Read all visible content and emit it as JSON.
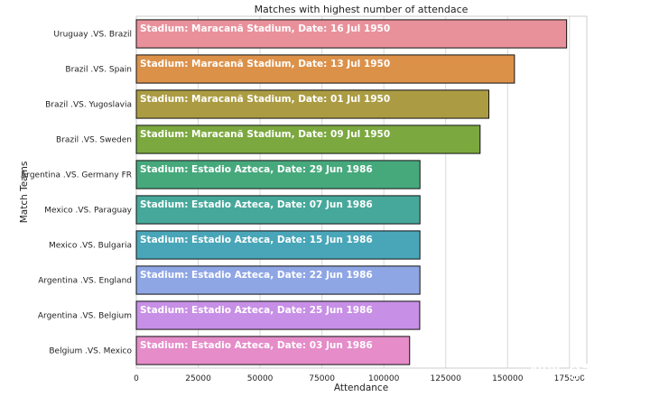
{
  "chart_data": {
    "type": "bar",
    "orientation": "horizontal",
    "title": "Matches with highest number of attendace",
    "xlabel": "Attendance",
    "ylabel": "Match Teams",
    "xlim": [
      0,
      182000
    ],
    "xticks": [
      0,
      25000,
      50000,
      75000,
      100000,
      125000,
      150000,
      175000
    ],
    "xtick_labels": [
      "0",
      "25000",
      "50000",
      "75000",
      "100000",
      "125000",
      "150000",
      "175000"
    ],
    "grid": true,
    "categories": [
      "Uruguay .VS. Brazil",
      "Brazil .VS. Spain",
      "Brazil .VS. Yugoslavia",
      "Brazil .VS. Sweden",
      "Argentina .VS. Germany FR",
      "Mexico .VS. Paraguay",
      "Mexico .VS. Bulgaria",
      "Argentina .VS. England",
      "Argentina .VS. Belgium",
      "Belgium .VS. Mexico"
    ],
    "values": [
      173850,
      152772,
      142429,
      138886,
      114600,
      114600,
      114580,
      114580,
      114500,
      110420
    ],
    "annotations": [
      "Stadium: Maracanã Stadium, Date: 16 Jul 1950",
      "Stadium: Maracanã Stadium, Date: 13 Jul 1950",
      "Stadium: Maracanã Stadium, Date: 01 Jul 1950",
      "Stadium: Maracanã Stadium, Date: 09 Jul 1950",
      "Stadium: Estadio Azteca, Date: 29 Jun 1986",
      "Stadium: Estadio Azteca, Date: 07 Jun 1986",
      "Stadium: Estadio Azteca, Date: 15 Jun 1986",
      "Stadium: Estadio Azteca, Date: 22 Jun 1986",
      "Stadium: Estadio Azteca, Date: 25 Jun 1986",
      "Stadium: Estadio Azteca, Date: 03 Jun 1986"
    ],
    "colors": [
      "#e9919b",
      "#dc9149",
      "#ab9c43",
      "#7ba83f",
      "#46a97c",
      "#46a89a",
      "#48a6b8",
      "#8fa6e5",
      "#c78fe6",
      "#e58cc9"
    ]
  },
  "watermark": "知乎 @刘明"
}
